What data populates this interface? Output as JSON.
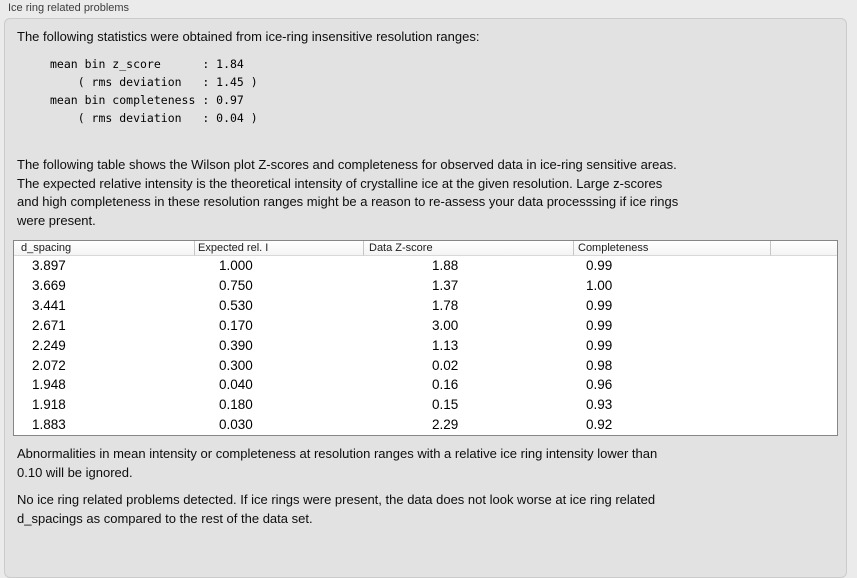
{
  "panel": {
    "title": "Ice ring related problems"
  },
  "intro": {
    "text": "The following statistics were obtained from ice-ring insensitive resolution ranges:"
  },
  "stats_block": {
    "lines": [
      "mean bin z_score      : 1.84",
      "    ( rms deviation   : 1.45 )",
      "mean bin completeness : 0.97",
      "    ( rms deviation   : 0.04 )"
    ]
  },
  "table_intro": {
    "lines": [
      "The following table shows the Wilson plot Z-scores and completeness for observed data in ice-ring sensitive areas.",
      "The expected relative intensity is the theoretical intensity of crystalline ice at the given resolution. Large z-scores",
      "and high completeness in these resolution ranges might be a reason to re-assess your data processsing if ice rings",
      "were present."
    ]
  },
  "table": {
    "columns": [
      "d_spacing",
      "Expected rel. I",
      "Data Z-score",
      "Completeness"
    ],
    "rows": [
      [
        "3.897",
        "1.000",
        "1.88",
        "0.99"
      ],
      [
        "3.669",
        "0.750",
        "1.37",
        "1.00"
      ],
      [
        "3.441",
        "0.530",
        "1.78",
        "0.99"
      ],
      [
        "2.671",
        "0.170",
        "3.00",
        "0.99"
      ],
      [
        "2.249",
        "0.390",
        "1.13",
        "0.99"
      ],
      [
        "2.072",
        "0.300",
        "0.02",
        "0.98"
      ],
      [
        "1.948",
        "0.040",
        "0.16",
        "0.96"
      ],
      [
        "1.918",
        "0.180",
        "0.15",
        "0.93"
      ],
      [
        "1.883",
        "0.030",
        "2.29",
        "0.92"
      ]
    ]
  },
  "notes": {
    "ignore_note_lines": [
      "Abnormalities in mean intensity or completeness at resolution ranges with a relative ice ring intensity lower than",
      "0.10 will be ignored."
    ],
    "conclusion_lines": [
      "No ice ring related problems detected. If ice rings were present, the data does not look worse at ice ring related",
      "d_spacings as compared to the rest of the data set."
    ]
  },
  "colors": {
    "page_bg": "#ebebeb",
    "box_bg": "#e2e2e2",
    "box_border": "#cbcbcb",
    "table_border": "#868686",
    "text": "#0d0d0d"
  }
}
